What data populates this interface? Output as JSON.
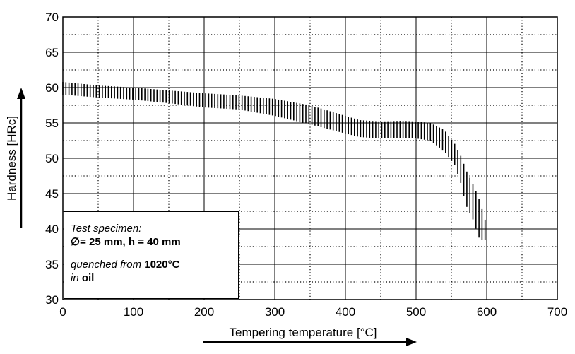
{
  "chart_data": {
    "type": "area",
    "xlabel": "Tempering temperature [°C]",
    "ylabel": "Hardness [HRc]",
    "xlim": [
      0,
      700
    ],
    "ylim": [
      30,
      70
    ],
    "x_ticks": [
      "0",
      "100",
      "200",
      "300",
      "400",
      "500",
      "600",
      "700"
    ],
    "y_ticks": [
      "30",
      "35",
      "40",
      "45",
      "50",
      "55",
      "60",
      "65",
      "70"
    ],
    "grid": true,
    "band": {
      "x": [
        0,
        50,
        100,
        150,
        200,
        250,
        300,
        350,
        400,
        420,
        450,
        480,
        500,
        520,
        540,
        555,
        565,
        570,
        580,
        590,
        600
      ],
      "upper": [
        60.8,
        60.3,
        60.0,
        59.6,
        59.2,
        58.9,
        58.4,
        57.5,
        56.0,
        55.4,
        55.2,
        55.3,
        55.2,
        55.0,
        54.0,
        52.0,
        50.0,
        48.5,
        46.5,
        44.0,
        40.5
      ],
      "lower": [
        59.0,
        58.6,
        58.3,
        57.8,
        57.2,
        56.9,
        56.0,
        54.8,
        53.5,
        53.0,
        52.8,
        52.9,
        52.8,
        52.5,
        51.0,
        49.0,
        46.0,
        43.5,
        41.5,
        38.5,
        38.5
      ]
    },
    "band_color": "#000000"
  },
  "legend_box": {
    "line1": "Test specimen:",
    "symbol": "∅",
    "line2": "= 25 mm, h = 40 mm",
    "line3_prefix": "quenched from ",
    "line3_value": "1020°C",
    "line4_prefix": "in ",
    "line4_value": "oil"
  }
}
